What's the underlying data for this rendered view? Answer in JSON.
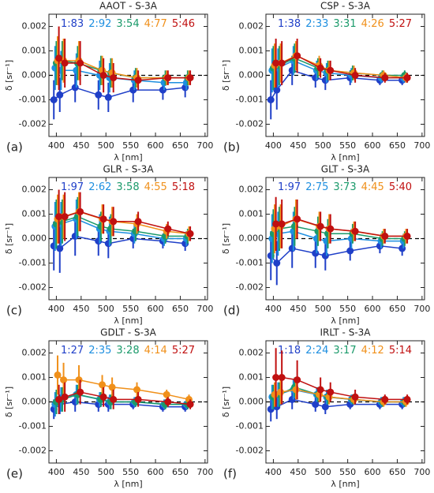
{
  "chart_data": [
    {
      "type": "line",
      "title": "AAOT - S-3A",
      "panel_label": "(a)",
      "xlabel": "λ [nm]",
      "ylabel": "δ [sr⁻¹]",
      "x": [
        400,
        412,
        443,
        490,
        510,
        560,
        620,
        665
      ],
      "xlim": [
        385,
        705
      ],
      "xticks": [
        400,
        450,
        500,
        550,
        600,
        650,
        700
      ],
      "ylim": [
        -0.0025,
        0.0025
      ],
      "yticks": [
        -0.002,
        -0.001,
        {
          "value": 0,
          "label": "0.000"
        },
        0.001,
        0.002
      ],
      "series": [
        {
          "name": "1:83",
          "color": "#1f3fc8",
          "values": [
            -0.001,
            -0.0008,
            -0.0005,
            -0.0008,
            -0.0009,
            -0.0006,
            -0.0006,
            -0.0005
          ],
          "errors": [
            0.0008,
            0.0007,
            0.0006,
            0.0006,
            0.0006,
            0.0005,
            0.0004,
            0.0004
          ]
        },
        {
          "name": "2:92",
          "color": "#1e8fe0",
          "values": [
            0.0003,
            0.0002,
            0.0002,
            0.0,
            -0.0001,
            -0.0002,
            -0.0003,
            -0.0003
          ],
          "errors": [
            0.0009,
            0.0008,
            0.0007,
            0.0006,
            0.0006,
            0.0004,
            0.0003,
            0.0003
          ]
        },
        {
          "name": "3:54",
          "color": "#1a9a6a",
          "values": [
            0.0005,
            0.0006,
            0.0005,
            0.0002,
            0.0001,
            -0.0001,
            -0.0001,
            -0.0001
          ],
          "errors": [
            0.0009,
            0.0008,
            0.0007,
            0.0006,
            0.0006,
            0.0004,
            0.0003,
            0.0003
          ]
        },
        {
          "name": "4:77",
          "color": "#f0901a",
          "values": [
            0.0006,
            0.0006,
            0.0006,
            0.0002,
            0.0001,
            -0.0001,
            -0.0001,
            -0.0001
          ],
          "errors": [
            0.001,
            0.0009,
            0.0008,
            0.0006,
            0.0006,
            0.0004,
            0.0003,
            0.0003
          ]
        },
        {
          "name": "5:46",
          "color": "#c01010",
          "values": [
            0.0007,
            0.0005,
            0.0005,
            0.0,
            -0.0001,
            -0.0002,
            -0.0001,
            -0.0001
          ],
          "errors": [
            0.0013,
            0.001,
            0.0009,
            0.0007,
            0.0006,
            0.0004,
            0.0003,
            0.0003
          ]
        }
      ]
    },
    {
      "type": "line",
      "title": "CSP - S-3A",
      "panel_label": "(b)",
      "xlabel": "λ [nm]",
      "ylabel": "δ [sr⁻¹]",
      "x": [
        400,
        412,
        443,
        490,
        510,
        560,
        620,
        665
      ],
      "xlim": [
        385,
        705
      ],
      "xticks": [
        400,
        450,
        500,
        550,
        600,
        650,
        700
      ],
      "ylim": [
        -0.0025,
        0.0025
      ],
      "yticks": [
        -0.002,
        -0.001,
        {
          "value": 0,
          "label": "0.000"
        },
        0.001,
        0.002
      ],
      "series": [
        {
          "name": "1:38",
          "color": "#1f3fc8",
          "values": [
            -0.001,
            -0.0006,
            0.0002,
            -0.0001,
            -0.0002,
            -0.0001,
            -0.0002,
            -0.0002
          ],
          "errors": [
            0.0008,
            0.0008,
            0.0006,
            0.0004,
            0.0004,
            0.0003,
            0.0002,
            0.0002
          ]
        },
        {
          "name": "2:33",
          "color": "#1e8fe0",
          "values": [
            0.0002,
            0.0003,
            0.0006,
            0.0002,
            0.0001,
            0.0,
            -0.0001,
            -0.0001
          ],
          "errors": [
            0.0009,
            0.0008,
            0.0006,
            0.0004,
            0.0004,
            0.0003,
            0.0002,
            0.0002
          ]
        },
        {
          "name": "3:31",
          "color": "#1a9a6a",
          "values": [
            0.0003,
            0.0004,
            0.0007,
            0.0003,
            0.0002,
            0.0001,
            0.0,
            0.0
          ],
          "errors": [
            0.0009,
            0.0008,
            0.0006,
            0.0004,
            0.0004,
            0.0003,
            0.0002,
            0.0002
          ]
        },
        {
          "name": "4:26",
          "color": "#f0901a",
          "values": [
            0.0004,
            0.0005,
            0.0008,
            0.0004,
            0.0002,
            0.0001,
            0.0,
            -0.0001
          ],
          "errors": [
            0.0009,
            0.0008,
            0.0006,
            0.0004,
            0.0004,
            0.0003,
            0.0002,
            0.0002
          ]
        },
        {
          "name": "5:27",
          "color": "#c01010",
          "values": [
            0.0005,
            0.0005,
            0.0008,
            0.0003,
            0.0002,
            0.0,
            -0.0001,
            -0.0001
          ],
          "errors": [
            0.001,
            0.0009,
            0.0007,
            0.0004,
            0.0004,
            0.0003,
            0.0002,
            0.0002
          ]
        }
      ]
    },
    {
      "type": "line",
      "title": "GLR - S-3A",
      "panel_label": "(c)",
      "xlabel": "λ [nm]",
      "ylabel": "δ [sr⁻¹]",
      "x": [
        400,
        412,
        443,
        490,
        510,
        560,
        620,
        665
      ],
      "xlim": [
        385,
        705
      ],
      "xticks": [
        400,
        450,
        500,
        550,
        600,
        650,
        700
      ],
      "ylim": [
        -0.0025,
        0.0025
      ],
      "yticks": [
        -0.002,
        -0.001,
        {
          "value": 0,
          "label": "0.000"
        },
        0.001,
        0.002
      ],
      "series": [
        {
          "name": "1:97",
          "color": "#1f3fc8",
          "values": [
            -0.0003,
            -0.0004,
            0.0001,
            -0.0001,
            -0.0002,
            0.0,
            -0.0001,
            -0.0002
          ],
          "errors": [
            0.001,
            0.001,
            0.0008,
            0.0006,
            0.0006,
            0.0004,
            0.0003,
            0.0003
          ]
        },
        {
          "name": "2:62",
          "color": "#1e8fe0",
          "values": [
            0.0005,
            0.0006,
            0.0008,
            0.0004,
            0.0003,
            0.0002,
            0.0,
            0.0
          ],
          "errors": [
            0.001,
            0.0009,
            0.0008,
            0.0006,
            0.0006,
            0.0004,
            0.0003,
            0.0003
          ]
        },
        {
          "name": "3:58",
          "color": "#1a9a6a",
          "values": [
            0.0006,
            0.0007,
            0.0009,
            0.0005,
            0.0004,
            0.0003,
            0.0001,
            0.0001
          ],
          "errors": [
            0.001,
            0.0009,
            0.0008,
            0.0006,
            0.0006,
            0.0004,
            0.0003,
            0.0003
          ]
        },
        {
          "name": "4:55",
          "color": "#f0901a",
          "values": [
            0.0008,
            0.0009,
            0.0011,
            0.0008,
            0.0007,
            0.0006,
            0.0003,
            0.0002
          ],
          "errors": [
            0.001,
            0.0009,
            0.0008,
            0.0006,
            0.0006,
            0.0004,
            0.0003,
            0.0003
          ]
        },
        {
          "name": "5:18",
          "color": "#c01010",
          "values": [
            0.0009,
            0.0009,
            0.0011,
            0.0008,
            0.0007,
            0.0007,
            0.0004,
            0.0002
          ],
          "errors": [
            0.0011,
            0.001,
            0.0008,
            0.0006,
            0.0006,
            0.0004,
            0.0003,
            0.0003
          ]
        }
      ]
    },
    {
      "type": "line",
      "title": "GLT - S-3A",
      "panel_label": "(d)",
      "xlabel": "λ [nm]",
      "ylabel": "δ [sr⁻¹]",
      "x": [
        400,
        412,
        443,
        490,
        510,
        560,
        620,
        665
      ],
      "xlim": [
        385,
        705
      ],
      "xticks": [
        400,
        450,
        500,
        550,
        600,
        650,
        700
      ],
      "ylim": [
        -0.0025,
        0.0025
      ],
      "yticks": [
        -0.002,
        -0.001,
        {
          "value": 0,
          "label": "0.000"
        },
        0.001,
        0.002
      ],
      "series": [
        {
          "name": "1:97",
          "color": "#1f3fc8",
          "values": [
            -0.0007,
            -0.001,
            -0.0004,
            -0.0006,
            -0.0007,
            -0.0005,
            -0.0003,
            -0.0004
          ],
          "errors": [
            0.001,
            0.0009,
            0.0008,
            0.0006,
            0.0006,
            0.0004,
            0.0003,
            0.0003
          ]
        },
        {
          "name": "2:75",
          "color": "#1e8fe0",
          "values": [
            0.0,
            0.0002,
            0.0003,
            0.0,
            -0.0001,
            0.0,
            -0.0001,
            -0.0001
          ],
          "errors": [
            0.001,
            0.0009,
            0.0008,
            0.0006,
            0.0006,
            0.0004,
            0.0003,
            0.0003
          ]
        },
        {
          "name": "3:73",
          "color": "#1a9a6a",
          "values": [
            0.0002,
            0.0004,
            0.0005,
            0.0003,
            0.0002,
            0.0002,
            0.0,
            0.0
          ],
          "errors": [
            0.001,
            0.0009,
            0.0008,
            0.0006,
            0.0006,
            0.0004,
            0.0003,
            0.0003
          ]
        },
        {
          "name": "4:45",
          "color": "#f0901a",
          "values": [
            0.0004,
            0.0005,
            0.0008,
            0.0005,
            0.0004,
            0.0003,
            0.0001,
            0.0001
          ],
          "errors": [
            0.001,
            0.0009,
            0.0008,
            0.0006,
            0.0006,
            0.0004,
            0.0003,
            0.0003
          ]
        },
        {
          "name": "5:40",
          "color": "#c01010",
          "values": [
            0.0006,
            0.0006,
            0.0008,
            0.0005,
            0.0004,
            0.0003,
            0.0001,
            0.0001
          ],
          "errors": [
            0.0011,
            0.001,
            0.0008,
            0.0006,
            0.0006,
            0.0004,
            0.0003,
            0.0003
          ]
        }
      ]
    },
    {
      "type": "line",
      "title": "GDLT - S-3A",
      "panel_label": "(e)",
      "xlabel": "λ [nm]",
      "ylabel": "δ [sr⁻¹]",
      "x": [
        400,
        412,
        443,
        490,
        510,
        560,
        620,
        665
      ],
      "xlim": [
        385,
        705
      ],
      "xticks": [
        400,
        450,
        500,
        550,
        600,
        650,
        700
      ],
      "ylim": [
        -0.0025,
        0.0025
      ],
      "yticks": [
        -0.002,
        -0.001,
        {
          "value": 0,
          "label": "0.000"
        },
        0.001,
        0.002
      ],
      "series": [
        {
          "name": "1:27",
          "color": "#1f3fc8",
          "values": [
            -0.0003,
            -0.0001,
            0.0,
            -0.0001,
            -0.0001,
            -0.0001,
            -0.0002,
            -0.0002
          ],
          "errors": [
            0.0004,
            0.0004,
            0.0004,
            0.0003,
            0.0003,
            0.0002,
            0.0002,
            0.0002
          ]
        },
        {
          "name": "2:35",
          "color": "#1e8fe0",
          "values": [
            -0.0001,
            0.0001,
            0.0003,
            0.0001,
            0.0,
            0.0,
            -0.0001,
            -0.0001
          ],
          "errors": [
            0.0005,
            0.0005,
            0.0004,
            0.0003,
            0.0003,
            0.0002,
            0.0002,
            0.0002
          ]
        },
        {
          "name": "3:28",
          "color": "#1a9a6a",
          "values": [
            0.0,
            0.0001,
            0.0003,
            0.0001,
            0.0,
            0.0,
            -0.0001,
            -0.0001
          ],
          "errors": [
            0.0005,
            0.0005,
            0.0004,
            0.0003,
            0.0003,
            0.0002,
            0.0002,
            0.0002
          ]
        },
        {
          "name": "4:14",
          "color": "#f0901a",
          "values": [
            0.0011,
            0.0009,
            0.0009,
            0.0007,
            0.0006,
            0.0005,
            0.0003,
            0.0001
          ],
          "errors": [
            0.0008,
            0.0007,
            0.0006,
            0.0004,
            0.0004,
            0.0003,
            0.0002,
            0.0002
          ]
        },
        {
          "name": "5:27",
          "color": "#c01010",
          "values": [
            0.0001,
            0.0002,
            0.0004,
            0.0002,
            0.0001,
            0.0001,
            0.0,
            -0.0001
          ],
          "errors": [
            0.0006,
            0.0006,
            0.0005,
            0.0004,
            0.0004,
            0.0003,
            0.0002,
            0.0002
          ]
        }
      ]
    },
    {
      "type": "line",
      "title": "IRLT - S-3A",
      "panel_label": "(f)",
      "xlabel": "λ [nm]",
      "ylabel": "δ [sr⁻¹]",
      "x": [
        400,
        412,
        443,
        490,
        510,
        560,
        620,
        665
      ],
      "xlim": [
        385,
        705
      ],
      "xticks": [
        400,
        450,
        500,
        550,
        600,
        650,
        700
      ],
      "ylim": [
        -0.0025,
        0.0025
      ],
      "yticks": [
        -0.002,
        -0.001,
        {
          "value": 0,
          "label": "0.000"
        },
        0.001,
        0.002
      ],
      "series": [
        {
          "name": "1:18",
          "color": "#1f3fc8",
          "values": [
            -0.0003,
            -0.0002,
            0.0001,
            -0.0001,
            -0.0002,
            -0.0001,
            -0.0001,
            -0.0001
          ],
          "errors": [
            0.0005,
            0.0005,
            0.0004,
            0.0003,
            0.0003,
            0.0002,
            0.0002,
            0.0002
          ]
        },
        {
          "name": "2:24",
          "color": "#1e8fe0",
          "values": [
            0.0002,
            0.0003,
            0.0005,
            0.0003,
            0.0002,
            0.0001,
            0.0,
            0.0
          ],
          "errors": [
            0.0005,
            0.0005,
            0.0004,
            0.0003,
            0.0003,
            0.0002,
            0.0002,
            0.0002
          ]
        },
        {
          "name": "3:17",
          "color": "#1a9a6a",
          "values": [
            0.0002,
            0.0003,
            0.0006,
            0.0003,
            0.0002,
            0.0001,
            0.0,
            0.0
          ],
          "errors": [
            0.0005,
            0.0005,
            0.0004,
            0.0003,
            0.0003,
            0.0002,
            0.0002,
            0.0002
          ]
        },
        {
          "name": "4:12",
          "color": "#f0901a",
          "values": [
            0.0003,
            0.0004,
            0.0005,
            0.0003,
            0.0002,
            0.0001,
            0.0,
            0.0
          ],
          "errors": [
            0.0005,
            0.0005,
            0.0004,
            0.0003,
            0.0003,
            0.0002,
            0.0002,
            0.0002
          ]
        },
        {
          "name": "5:14",
          "color": "#c01010",
          "values": [
            0.001,
            0.001,
            0.0009,
            0.0005,
            0.0004,
            0.0002,
            0.0001,
            0.0001
          ],
          "errors": [
            0.0012,
            0.0011,
            0.0008,
            0.0005,
            0.0004,
            0.0003,
            0.0002,
            0.0002
          ]
        }
      ]
    }
  ]
}
